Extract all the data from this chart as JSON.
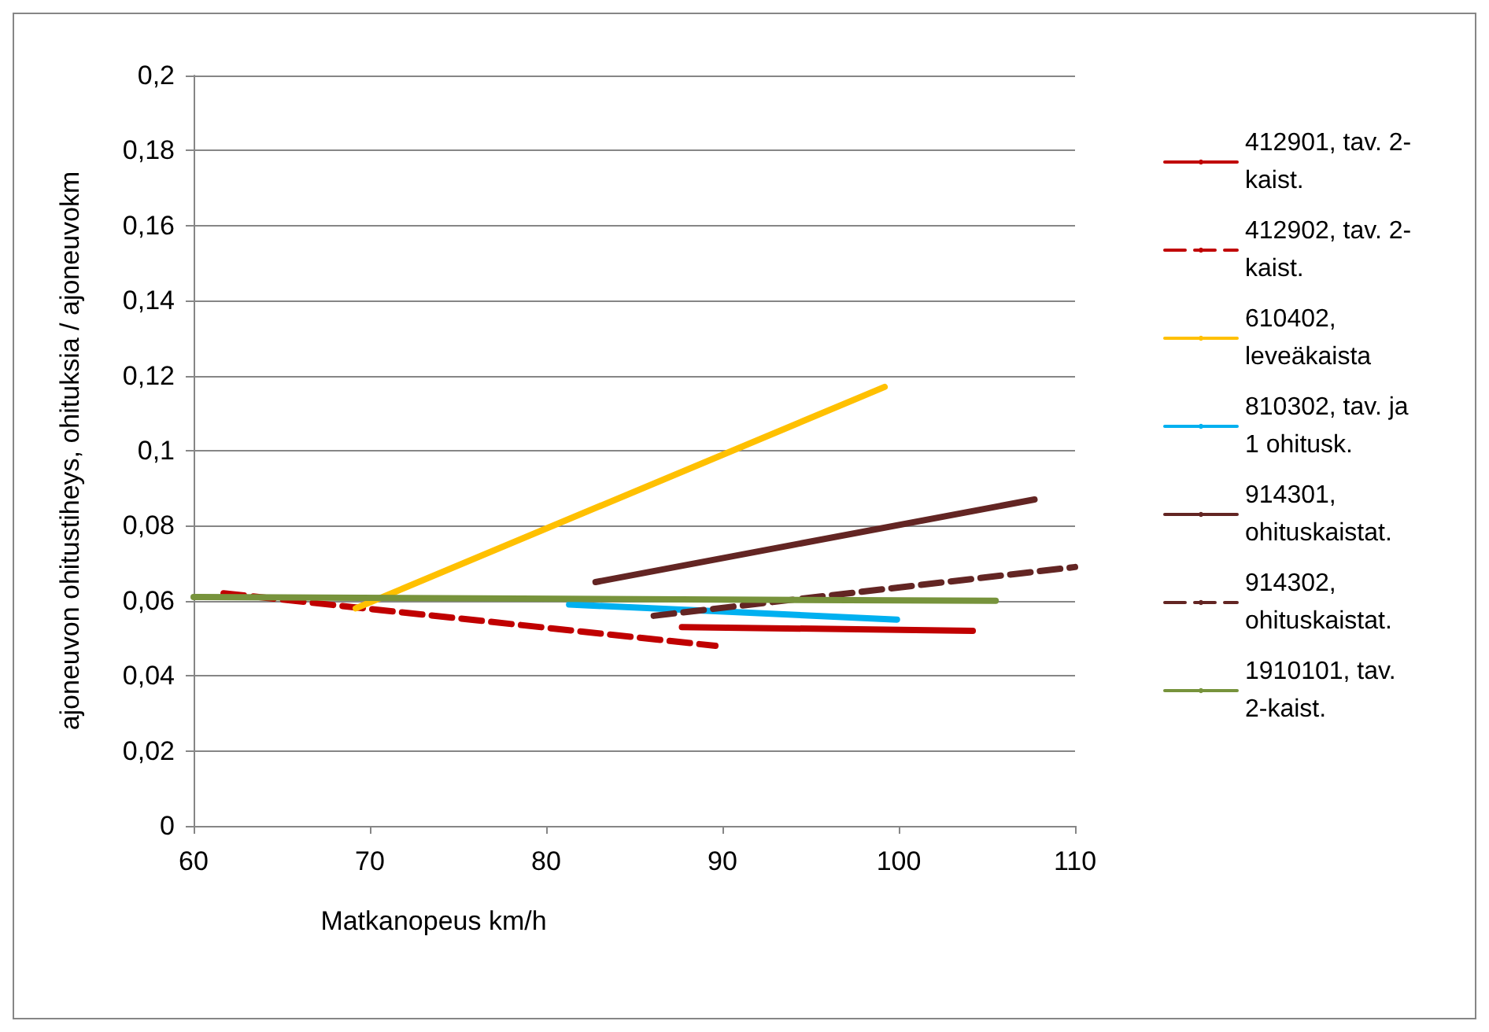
{
  "chart_data": {
    "type": "line",
    "xlabel": "Matkanopeus km/h",
    "ylabel": "ajoneuvon ohitustiheys, ohituksia / ajoneuvokm",
    "xlim": [
      60,
      110
    ],
    "xticks": [
      60,
      70,
      80,
      90,
      100,
      110
    ],
    "ylim": [
      0,
      0.2
    ],
    "yticks": [
      {
        "value": 0,
        "label": "0"
      },
      {
        "value": 0.02,
        "label": "0,02"
      },
      {
        "value": 0.04,
        "label": "0,04"
      },
      {
        "value": 0.06,
        "label": "0,06"
      },
      {
        "value": 0.08,
        "label": "0,08"
      },
      {
        "value": 0.1,
        "label": "0,1"
      },
      {
        "value": 0.12,
        "label": "0,12"
      },
      {
        "value": 0.14,
        "label": "0,14"
      },
      {
        "value": 0.16,
        "label": "0,16"
      },
      {
        "value": 0.18,
        "label": "0,18"
      },
      {
        "value": 0.2,
        "label": "0,2"
      }
    ],
    "grid": "y",
    "legend": "right",
    "marker": "none",
    "series": [
      {
        "name": "412901, tav. 2-kaist.",
        "color": "#c00000",
        "line_style": "solid",
        "x": [
          87.7,
          104.2
        ],
        "values": [
          0.053,
          0.052
        ]
      },
      {
        "name": "412902, tav. 2-kaist.",
        "color": "#c00000",
        "line_style": "dashed",
        "x": [
          61.7,
          89.6
        ],
        "values": [
          0.062,
          0.048
        ]
      },
      {
        "name": "610402, leveäkaista",
        "color": "#ffc000",
        "line_style": "solid",
        "x": [
          69.2,
          99.2
        ],
        "values": [
          0.058,
          0.117
        ]
      },
      {
        "name": "810302, tav. ja 1 ohitusk.",
        "color": "#00b0f0",
        "line_style": "solid",
        "x": [
          81.3,
          99.9
        ],
        "values": [
          0.059,
          0.055
        ]
      },
      {
        "name": "914301, ohituskaistat.",
        "color": "#632523",
        "line_style": "solid",
        "x": [
          82.8,
          107.7
        ],
        "values": [
          0.065,
          0.087
        ]
      },
      {
        "name": "914302, ohituskaistat.",
        "color": "#632523",
        "line_style": "dashed",
        "x": [
          86.1,
          110
        ],
        "values": [
          0.056,
          0.069
        ]
      },
      {
        "name": "1910101, tav. 2-kaist.",
        "color": "#77933c",
        "line_style": "solid",
        "x": [
          60,
          105.5
        ],
        "values": [
          0.061,
          0.06
        ]
      }
    ]
  }
}
